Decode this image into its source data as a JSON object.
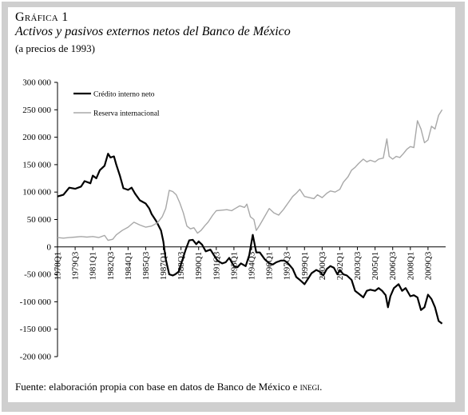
{
  "header": {
    "kicker": "Gráfica 1",
    "title": "Activos y pasivos externos netos del Banco de México",
    "subtitle": "(a precios de 1993)"
  },
  "footer": {
    "source_prefix": "Fuente: elaboración propia con base en datos de Banco de México e ",
    "source_org": "inegi",
    "source_suffix": "."
  },
  "colors": {
    "credito": "#000000",
    "reserva": "#a8a8a8",
    "axis": "#000000"
  },
  "chart_data": {
    "type": "line",
    "title": "Activos y pasivos externos netos del Banco de México",
    "subtitle": "(a precios de 1993)",
    "ylim": [
      -200000,
      300000
    ],
    "yticks": [
      {
        "value": 300000,
        "label": "300 000"
      },
      {
        "value": 250000,
        "label": "250 000"
      },
      {
        "value": 200000,
        "label": "200 000"
      },
      {
        "value": 150000,
        "label": "150 000"
      },
      {
        "value": 100000,
        "label": "100 000"
      },
      {
        "value": 50000,
        "label": "50 000"
      },
      {
        "value": 0,
        "label": "0"
      },
      {
        "value": -50000,
        "label": "-50 000"
      },
      {
        "value": -100000,
        "label": "-100 000"
      },
      {
        "value": -150000,
        "label": "-150 000"
      },
      {
        "value": -200000,
        "label": "-200 000"
      }
    ],
    "xlim": [
      1978.0,
      2011.0
    ],
    "xticks": [
      {
        "x": 1978.0,
        "label": "1978Q1"
      },
      {
        "x": 1979.5,
        "label": "1979Q3"
      },
      {
        "x": 1981.0,
        "label": "1981Q1"
      },
      {
        "x": 1982.5,
        "label": "1982Q3"
      },
      {
        "x": 1984.0,
        "label": "1984Q1"
      },
      {
        "x": 1985.5,
        "label": "1985Q3"
      },
      {
        "x": 1987.0,
        "label": "1987Q1"
      },
      {
        "x": 1988.5,
        "label": "1988Q3"
      },
      {
        "x": 1990.0,
        "label": "1990Q1"
      },
      {
        "x": 1991.5,
        "label": "1991Q3"
      },
      {
        "x": 1993.0,
        "label": "1993Q1"
      },
      {
        "x": 1994.5,
        "label": "1994Q3"
      },
      {
        "x": 1996.0,
        "label": "1996Q1"
      },
      {
        "x": 1997.5,
        "label": "1997Q3"
      },
      {
        "x": 1999.0,
        "label": "1999Q1"
      },
      {
        "x": 2000.5,
        "label": "2000Q3"
      },
      {
        "x": 2002.0,
        "label": "2002Q1"
      },
      {
        "x": 2003.5,
        "label": "2003Q3"
      },
      {
        "x": 2005.0,
        "label": "2005Q1"
      },
      {
        "x": 2006.5,
        "label": "2006Q3"
      },
      {
        "x": 2008.0,
        "label": "2008Q1"
      },
      {
        "x": 2009.5,
        "label": "2009Q3"
      }
    ],
    "legend_position": "top-left",
    "grid": false,
    "series": [
      {
        "name": "Crédito interno neto",
        "color": "#000000",
        "points": [
          [
            1978.0,
            92000
          ],
          [
            1978.5,
            95000
          ],
          [
            1979.0,
            108000
          ],
          [
            1979.5,
            106000
          ],
          [
            1980.0,
            110000
          ],
          [
            1980.3,
            120000
          ],
          [
            1980.8,
            116000
          ],
          [
            1981.0,
            130000
          ],
          [
            1981.3,
            125000
          ],
          [
            1981.6,
            140000
          ],
          [
            1982.0,
            148000
          ],
          [
            1982.3,
            170000
          ],
          [
            1982.5,
            163000
          ],
          [
            1982.8,
            165000
          ],
          [
            1983.0,
            150000
          ],
          [
            1983.3,
            130000
          ],
          [
            1983.6,
            107000
          ],
          [
            1984.0,
            104000
          ],
          [
            1984.3,
            108000
          ],
          [
            1984.6,
            97000
          ],
          [
            1985.0,
            85000
          ],
          [
            1985.5,
            79000
          ],
          [
            1985.8,
            70000
          ],
          [
            1986.0,
            60000
          ],
          [
            1986.4,
            47000
          ],
          [
            1986.8,
            30000
          ],
          [
            1987.0,
            10000
          ],
          [
            1987.2,
            -22000
          ],
          [
            1987.5,
            -50000
          ],
          [
            1987.8,
            -52000
          ],
          [
            1988.0,
            -50000
          ],
          [
            1988.3,
            -45000
          ],
          [
            1988.6,
            -25000
          ],
          [
            1988.9,
            -5000
          ],
          [
            1989.2,
            12000
          ],
          [
            1989.5,
            13000
          ],
          [
            1989.8,
            5000
          ],
          [
            1990.0,
            10000
          ],
          [
            1990.3,
            4000
          ],
          [
            1990.6,
            -8000
          ],
          [
            1991.0,
            -5000
          ],
          [
            1991.3,
            -15000
          ],
          [
            1991.6,
            -25000
          ],
          [
            1992.0,
            -30000
          ],
          [
            1992.3,
            -28000
          ],
          [
            1992.6,
            -20000
          ],
          [
            1993.0,
            -35000
          ],
          [
            1993.3,
            -37000
          ],
          [
            1993.6,
            -30000
          ],
          [
            1994.0,
            -35000
          ],
          [
            1994.3,
            -15000
          ],
          [
            1994.6,
            22000
          ],
          [
            1994.9,
            -10000
          ],
          [
            1995.2,
            -10000
          ],
          [
            1995.6,
            -22000
          ],
          [
            1996.0,
            -30000
          ],
          [
            1996.3,
            -32000
          ],
          [
            1996.6,
            -28000
          ],
          [
            1997.0,
            -25000
          ],
          [
            1997.3,
            -25000
          ],
          [
            1997.6,
            -30000
          ],
          [
            1998.0,
            -40000
          ],
          [
            1998.3,
            -55000
          ],
          [
            1998.6,
            -60000
          ],
          [
            1999.0,
            -68000
          ],
          [
            1999.3,
            -58000
          ],
          [
            1999.6,
            -48000
          ],
          [
            2000.0,
            -42000
          ],
          [
            2000.3,
            -45000
          ],
          [
            2000.6,
            -52000
          ],
          [
            2000.9,
            -40000
          ],
          [
            2001.2,
            -35000
          ],
          [
            2001.5,
            -38000
          ],
          [
            2001.8,
            -50000
          ],
          [
            2002.0,
            -42000
          ],
          [
            2002.3,
            -50000
          ],
          [
            2002.6,
            -52000
          ],
          [
            2003.0,
            -60000
          ],
          [
            2003.3,
            -80000
          ],
          [
            2003.6,
            -85000
          ],
          [
            2004.0,
            -92000
          ],
          [
            2004.3,
            -80000
          ],
          [
            2004.6,
            -78000
          ],
          [
            2005.0,
            -80000
          ],
          [
            2005.3,
            -75000
          ],
          [
            2005.6,
            -80000
          ],
          [
            2005.9,
            -88000
          ],
          [
            2006.1,
            -110000
          ],
          [
            2006.3,
            -90000
          ],
          [
            2006.6,
            -75000
          ],
          [
            2007.0,
            -68000
          ],
          [
            2007.3,
            -80000
          ],
          [
            2007.6,
            -75000
          ],
          [
            2008.0,
            -90000
          ],
          [
            2008.3,
            -88000
          ],
          [
            2008.6,
            -92000
          ],
          [
            2008.9,
            -115000
          ],
          [
            2009.2,
            -110000
          ],
          [
            2009.5,
            -87000
          ],
          [
            2009.8,
            -95000
          ],
          [
            2010.1,
            -110000
          ],
          [
            2010.4,
            -135000
          ],
          [
            2010.7,
            -140000
          ]
        ]
      },
      {
        "name": "Reserva internacional",
        "color": "#a8a8a8",
        "points": [
          [
            1978.0,
            17000
          ],
          [
            1978.5,
            16000
          ],
          [
            1979.0,
            17000
          ],
          [
            1979.5,
            18000
          ],
          [
            1980.0,
            19000
          ],
          [
            1980.5,
            18000
          ],
          [
            1981.0,
            19000
          ],
          [
            1981.5,
            17000
          ],
          [
            1982.0,
            21000
          ],
          [
            1982.3,
            12000
          ],
          [
            1982.7,
            14000
          ],
          [
            1983.0,
            22000
          ],
          [
            1983.5,
            30000
          ],
          [
            1984.0,
            36000
          ],
          [
            1984.5,
            45000
          ],
          [
            1985.0,
            40000
          ],
          [
            1985.5,
            36000
          ],
          [
            1986.0,
            38000
          ],
          [
            1986.5,
            44000
          ],
          [
            1986.9,
            55000
          ],
          [
            1987.2,
            70000
          ],
          [
            1987.5,
            103000
          ],
          [
            1987.8,
            101000
          ],
          [
            1988.1,
            95000
          ],
          [
            1988.4,
            80000
          ],
          [
            1988.7,
            62000
          ],
          [
            1989.0,
            38000
          ],
          [
            1989.3,
            33000
          ],
          [
            1989.6,
            35000
          ],
          [
            1989.9,
            25000
          ],
          [
            1990.2,
            30000
          ],
          [
            1990.5,
            38000
          ],
          [
            1990.8,
            45000
          ],
          [
            1991.2,
            58000
          ],
          [
            1991.5,
            66000
          ],
          [
            1992.0,
            67000
          ],
          [
            1992.4,
            68000
          ],
          [
            1992.8,
            66000
          ],
          [
            1993.1,
            70000
          ],
          [
            1993.5,
            75000
          ],
          [
            1993.9,
            72000
          ],
          [
            1994.1,
            78000
          ],
          [
            1994.4,
            55000
          ],
          [
            1994.7,
            50000
          ],
          [
            1994.9,
            30000
          ],
          [
            1995.2,
            40000
          ],
          [
            1995.6,
            55000
          ],
          [
            1996.0,
            70000
          ],
          [
            1996.4,
            62000
          ],
          [
            1996.8,
            58000
          ],
          [
            1997.2,
            68000
          ],
          [
            1997.6,
            80000
          ],
          [
            1998.0,
            92000
          ],
          [
            1998.3,
            98000
          ],
          [
            1998.6,
            105000
          ],
          [
            1999.0,
            92000
          ],
          [
            1999.4,
            90000
          ],
          [
            1999.8,
            88000
          ],
          [
            2000.1,
            95000
          ],
          [
            2000.5,
            90000
          ],
          [
            2000.9,
            98000
          ],
          [
            2001.2,
            102000
          ],
          [
            2001.6,
            100000
          ],
          [
            2002.0,
            105000
          ],
          [
            2002.3,
            118000
          ],
          [
            2002.7,
            128000
          ],
          [
            2003.0,
            140000
          ],
          [
            2003.3,
            145000
          ],
          [
            2003.6,
            152000
          ],
          [
            2004.0,
            160000
          ],
          [
            2004.3,
            155000
          ],
          [
            2004.6,
            158000
          ],
          [
            2005.0,
            155000
          ],
          [
            2005.3,
            160000
          ],
          [
            2005.7,
            162000
          ],
          [
            2006.0,
            197000
          ],
          [
            2006.2,
            165000
          ],
          [
            2006.5,
            160000
          ],
          [
            2006.8,
            165000
          ],
          [
            2007.1,
            163000
          ],
          [
            2007.4,
            170000
          ],
          [
            2007.7,
            178000
          ],
          [
            2008.0,
            183000
          ],
          [
            2008.3,
            181000
          ],
          [
            2008.6,
            230000
          ],
          [
            2008.9,
            215000
          ],
          [
            2009.2,
            190000
          ],
          [
            2009.5,
            195000
          ],
          [
            2009.8,
            220000
          ],
          [
            2010.1,
            215000
          ],
          [
            2010.4,
            240000
          ],
          [
            2010.7,
            250000
          ]
        ]
      }
    ]
  }
}
